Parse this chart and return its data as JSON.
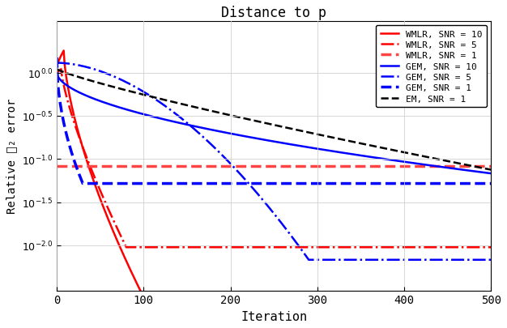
{
  "title": "Distance to p",
  "xlabel": "Iteration",
  "ylabel": "Relative ℓ₂ error",
  "xlim": [
    0,
    500
  ],
  "ylim": [
    0.003,
    4.0
  ],
  "bg_color": "#f8f8f8",
  "curves": {
    "wmlr10": {
      "label": "WMLR, SNR = 10",
      "color": "#ff0000",
      "linestyle": "-",
      "linewidth": 1.8,
      "floor": 0.0025
    },
    "wmlr5": {
      "label": "WMLR, SNR = 5",
      "color": "#ff0000",
      "linestyle": "-.",
      "linewidth": 1.8,
      "floor": 0.0095
    },
    "wmlr1": {
      "label": "WMLR, SNR = 1",
      "color": "#ff4444",
      "linestyle": "--",
      "linewidth": 2.5,
      "floor": 0.082
    },
    "gem10": {
      "label": "GEM, SNR = 10",
      "color": "#0000ff",
      "linestyle": "-",
      "linewidth": 1.8,
      "floor": 0.068
    },
    "gem5": {
      "label": "GEM, SNR = 5",
      "color": "#0000ff",
      "linestyle": "-.",
      "linewidth": 1.8,
      "floor": 0.0068
    },
    "gem1": {
      "label": "GEM, SNR = 1",
      "color": "#0000ff",
      "linestyle": "--",
      "linewidth": 2.5,
      "floor": 0.052
    },
    "em1": {
      "label": "EM, SNR = 1",
      "color": "#000000",
      "linestyle": "--",
      "linewidth": 1.8,
      "floor": 0.068
    }
  }
}
